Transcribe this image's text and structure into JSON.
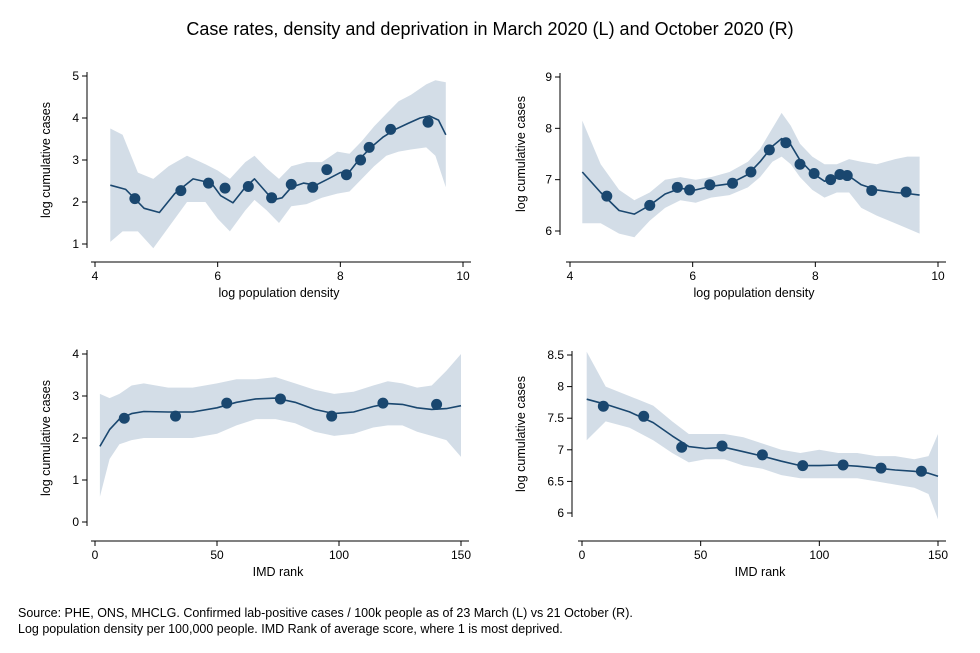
{
  "title": "Case rates, density and deprivation in March 2020 (L) and October 2020 (R)",
  "notes": [
    "Source: PHE, ONS, MHCLG. Confirmed lab-positive cases / 100k people as of 23 March (L) vs 21 October (R).",
    "Log population density per 100,000 people. IMD Rank of average score, where 1 is most deprived."
  ],
  "colors": {
    "marker": "#1a476f",
    "line": "#1a476f",
    "band": "#d3dde7",
    "axis": "#000000"
  },
  "chart_data": [
    {
      "type": "scatter",
      "xlabel": "log population density",
      "ylabel": "log cumulative cases",
      "xlim": [
        4,
        10
      ],
      "ylim": [
        1,
        5
      ],
      "xticks": [
        4,
        6,
        8,
        10
      ],
      "yticks": [
        1,
        2,
        3,
        4,
        5
      ],
      "points": [
        [
          4.65,
          2.08
        ],
        [
          5.4,
          2.27
        ],
        [
          5.85,
          2.45
        ],
        [
          6.12,
          2.33
        ],
        [
          6.5,
          2.37
        ],
        [
          6.88,
          2.1
        ],
        [
          7.2,
          2.42
        ],
        [
          7.55,
          2.35
        ],
        [
          7.78,
          2.77
        ],
        [
          8.1,
          2.65
        ],
        [
          8.33,
          3.0
        ],
        [
          8.47,
          3.3
        ],
        [
          8.82,
          3.73
        ],
        [
          9.43,
          3.9
        ]
      ],
      "fit": [
        [
          4.25,
          2.4
        ],
        [
          4.5,
          2.3
        ],
        [
          4.8,
          1.85
        ],
        [
          5.05,
          1.75
        ],
        [
          5.3,
          2.2
        ],
        [
          5.6,
          2.55
        ],
        [
          5.9,
          2.45
        ],
        [
          6.05,
          2.15
        ],
        [
          6.25,
          1.98
        ],
        [
          6.45,
          2.35
        ],
        [
          6.6,
          2.55
        ],
        [
          6.75,
          2.3
        ],
        [
          6.9,
          2.05
        ],
        [
          7.05,
          2.1
        ],
        [
          7.2,
          2.35
        ],
        [
          7.4,
          2.45
        ],
        [
          7.6,
          2.4
        ],
        [
          7.8,
          2.55
        ],
        [
          8.0,
          2.7
        ],
        [
          8.15,
          2.72
        ],
        [
          8.3,
          3.0
        ],
        [
          8.5,
          3.3
        ],
        [
          8.7,
          3.55
        ],
        [
          8.9,
          3.73
        ],
        [
          9.1,
          3.87
        ],
        [
          9.3,
          4.0
        ],
        [
          9.45,
          4.05
        ],
        [
          9.6,
          3.95
        ],
        [
          9.72,
          3.6
        ]
      ],
      "band_upper": [
        [
          4.25,
          3.75
        ],
        [
          4.45,
          3.6
        ],
        [
          4.7,
          2.7
        ],
        [
          4.95,
          2.55
        ],
        [
          5.2,
          2.85
        ],
        [
          5.5,
          3.1
        ],
        [
          5.8,
          2.9
        ],
        [
          6.0,
          2.75
        ],
        [
          6.2,
          2.55
        ],
        [
          6.45,
          2.95
        ],
        [
          6.6,
          3.1
        ],
        [
          6.8,
          2.8
        ],
        [
          7.0,
          2.55
        ],
        [
          7.2,
          2.85
        ],
        [
          7.45,
          2.95
        ],
        [
          7.7,
          2.95
        ],
        [
          7.95,
          3.2
        ],
        [
          8.15,
          3.15
        ],
        [
          8.35,
          3.45
        ],
        [
          8.55,
          3.8
        ],
        [
          8.75,
          4.1
        ],
        [
          8.95,
          4.4
        ],
        [
          9.15,
          4.55
        ],
        [
          9.4,
          4.8
        ],
        [
          9.55,
          4.9
        ],
        [
          9.72,
          4.85
        ]
      ],
      "band_lower": [
        [
          4.25,
          1.05
        ],
        [
          4.45,
          1.3
        ],
        [
          4.7,
          1.3
        ],
        [
          4.95,
          0.9
        ],
        [
          5.2,
          1.4
        ],
        [
          5.5,
          2.0
        ],
        [
          5.8,
          2.0
        ],
        [
          6.0,
          1.6
        ],
        [
          6.2,
          1.3
        ],
        [
          6.45,
          1.8
        ],
        [
          6.6,
          2.05
        ],
        [
          6.8,
          1.8
        ],
        [
          7.0,
          1.5
        ],
        [
          7.2,
          1.9
        ],
        [
          7.45,
          1.95
        ],
        [
          7.7,
          2.1
        ],
        [
          7.95,
          2.2
        ],
        [
          8.15,
          2.25
        ],
        [
          8.35,
          2.55
        ],
        [
          8.55,
          2.85
        ],
        [
          8.75,
          3.1
        ],
        [
          8.95,
          3.2
        ],
        [
          9.15,
          3.25
        ],
        [
          9.4,
          3.3
        ],
        [
          9.55,
          3.1
        ],
        [
          9.72,
          2.35
        ]
      ]
    },
    {
      "type": "scatter",
      "xlabel": "log population density",
      "ylabel": "log cumulative cases",
      "xlim": [
        4,
        10
      ],
      "ylim": [
        6,
        9
      ],
      "xticks": [
        4,
        6,
        8,
        10
      ],
      "yticks": [
        6,
        7,
        8,
        9
      ],
      "points": [
        [
          4.6,
          6.68
        ],
        [
          5.3,
          6.5
        ],
        [
          5.75,
          6.85
        ],
        [
          5.95,
          6.8
        ],
        [
          6.28,
          6.9
        ],
        [
          6.65,
          6.93
        ],
        [
          6.95,
          7.15
        ],
        [
          7.25,
          7.58
        ],
        [
          7.52,
          7.72
        ],
        [
          7.75,
          7.3
        ],
        [
          7.98,
          7.12
        ],
        [
          8.25,
          7.0
        ],
        [
          8.4,
          7.1
        ],
        [
          8.52,
          7.08
        ],
        [
          8.92,
          6.79
        ],
        [
          9.48,
          6.76
        ]
      ],
      "fit": [
        [
          4.2,
          7.15
        ],
        [
          4.5,
          6.75
        ],
        [
          4.8,
          6.4
        ],
        [
          5.05,
          6.33
        ],
        [
          5.3,
          6.5
        ],
        [
          5.55,
          6.72
        ],
        [
          5.8,
          6.83
        ],
        [
          6.05,
          6.8
        ],
        [
          6.3,
          6.87
        ],
        [
          6.6,
          6.92
        ],
        [
          6.9,
          7.1
        ],
        [
          7.1,
          7.35
        ],
        [
          7.3,
          7.65
        ],
        [
          7.45,
          7.8
        ],
        [
          7.6,
          7.68
        ],
        [
          7.75,
          7.38
        ],
        [
          7.95,
          7.13
        ],
        [
          8.15,
          6.97
        ],
        [
          8.35,
          7.03
        ],
        [
          8.55,
          7.07
        ],
        [
          8.75,
          6.9
        ],
        [
          9.0,
          6.8
        ],
        [
          9.3,
          6.75
        ],
        [
          9.5,
          6.73
        ],
        [
          9.7,
          6.7
        ]
      ],
      "band_upper": [
        [
          4.2,
          8.15
        ],
        [
          4.5,
          7.3
        ],
        [
          4.8,
          6.8
        ],
        [
          5.05,
          6.6
        ],
        [
          5.3,
          6.75
        ],
        [
          5.55,
          7.0
        ],
        [
          5.8,
          7.05
        ],
        [
          6.05,
          7.0
        ],
        [
          6.3,
          7.05
        ],
        [
          6.6,
          7.15
        ],
        [
          6.9,
          7.35
        ],
        [
          7.1,
          7.6
        ],
        [
          7.3,
          8.0
        ],
        [
          7.45,
          8.3
        ],
        [
          7.6,
          8.05
        ],
        [
          7.75,
          7.7
        ],
        [
          7.95,
          7.45
        ],
        [
          8.15,
          7.3
        ],
        [
          8.35,
          7.3
        ],
        [
          8.55,
          7.4
        ],
        [
          8.75,
          7.35
        ],
        [
          9.0,
          7.3
        ],
        [
          9.3,
          7.4
        ],
        [
          9.5,
          7.45
        ],
        [
          9.7,
          7.45
        ]
      ],
      "band_lower": [
        [
          4.2,
          6.15
        ],
        [
          4.5,
          6.15
        ],
        [
          4.8,
          5.95
        ],
        [
          5.05,
          5.88
        ],
        [
          5.3,
          6.2
        ],
        [
          5.55,
          6.45
        ],
        [
          5.8,
          6.6
        ],
        [
          6.05,
          6.55
        ],
        [
          6.3,
          6.65
        ],
        [
          6.6,
          6.7
        ],
        [
          6.9,
          6.85
        ],
        [
          7.1,
          7.05
        ],
        [
          7.3,
          7.35
        ],
        [
          7.45,
          7.45
        ],
        [
          7.6,
          7.3
        ],
        [
          7.75,
          7.05
        ],
        [
          7.95,
          6.8
        ],
        [
          8.15,
          6.65
        ],
        [
          8.35,
          6.75
        ],
        [
          8.55,
          6.75
        ],
        [
          8.75,
          6.45
        ],
        [
          9.0,
          6.3
        ],
        [
          9.3,
          6.15
        ],
        [
          9.5,
          6.05
        ],
        [
          9.7,
          5.95
        ]
      ]
    },
    {
      "type": "scatter",
      "xlabel": "IMD rank",
      "ylabel": "log cumulative cases",
      "xlim": [
        0,
        150
      ],
      "ylim": [
        0,
        4
      ],
      "xticks": [
        0,
        50,
        100,
        150
      ],
      "yticks": [
        0,
        1,
        2,
        3,
        4
      ],
      "points": [
        [
          12,
          2.47
        ],
        [
          33,
          2.52
        ],
        [
          54,
          2.83
        ],
        [
          76,
          2.93
        ],
        [
          97,
          2.52
        ],
        [
          118,
          2.83
        ],
        [
          140,
          2.8
        ]
      ],
      "fit": [
        [
          2,
          1.8
        ],
        [
          6,
          2.2
        ],
        [
          10,
          2.45
        ],
        [
          15,
          2.58
        ],
        [
          20,
          2.63
        ],
        [
          30,
          2.62
        ],
        [
          40,
          2.62
        ],
        [
          50,
          2.72
        ],
        [
          58,
          2.85
        ],
        [
          66,
          2.93
        ],
        [
          74,
          2.95
        ],
        [
          82,
          2.85
        ],
        [
          90,
          2.68
        ],
        [
          98,
          2.58
        ],
        [
          106,
          2.62
        ],
        [
          114,
          2.75
        ],
        [
          120,
          2.82
        ],
        [
          126,
          2.8
        ],
        [
          132,
          2.72
        ],
        [
          138,
          2.68
        ],
        [
          144,
          2.7
        ],
        [
          150,
          2.77
        ]
      ],
      "band_upper": [
        [
          2,
          3.05
        ],
        [
          6,
          2.95
        ],
        [
          10,
          3.05
        ],
        [
          15,
          3.25
        ],
        [
          20,
          3.3
        ],
        [
          30,
          3.2
        ],
        [
          40,
          3.2
        ],
        [
          50,
          3.3
        ],
        [
          58,
          3.4
        ],
        [
          66,
          3.4
        ],
        [
          74,
          3.45
        ],
        [
          82,
          3.3
        ],
        [
          90,
          3.15
        ],
        [
          98,
          3.05
        ],
        [
          106,
          3.1
        ],
        [
          114,
          3.25
        ],
        [
          120,
          3.35
        ],
        [
          126,
          3.3
        ],
        [
          132,
          3.2
        ],
        [
          138,
          3.25
        ],
        [
          144,
          3.6
        ],
        [
          150,
          4.0
        ]
      ],
      "band_lower": [
        [
          2,
          0.6
        ],
        [
          6,
          1.5
        ],
        [
          10,
          1.85
        ],
        [
          15,
          1.95
        ],
        [
          20,
          2.0
        ],
        [
          30,
          2.0
        ],
        [
          40,
          2.0
        ],
        [
          50,
          2.1
        ],
        [
          58,
          2.3
        ],
        [
          66,
          2.45
        ],
        [
          74,
          2.45
        ],
        [
          82,
          2.35
        ],
        [
          90,
          2.15
        ],
        [
          98,
          2.05
        ],
        [
          106,
          2.1
        ],
        [
          114,
          2.25
        ],
        [
          120,
          2.3
        ],
        [
          126,
          2.3
        ],
        [
          132,
          2.15
        ],
        [
          138,
          2.05
        ],
        [
          144,
          1.95
        ],
        [
          150,
          1.55
        ]
      ]
    },
    {
      "type": "scatter",
      "xlabel": "IMD rank",
      "ylabel": "log cumulative cases",
      "xlim": [
        0,
        150
      ],
      "ylim": [
        6,
        8.5
      ],
      "xticks": [
        0,
        50,
        100,
        150
      ],
      "yticks": [
        6,
        6.5,
        7,
        7.5,
        8,
        8.5
      ],
      "points": [
        [
          9,
          7.69
        ],
        [
          26,
          7.53
        ],
        [
          42,
          7.04
        ],
        [
          59,
          7.06
        ],
        [
          76,
          6.92
        ],
        [
          93,
          6.75
        ],
        [
          110,
          6.76
        ],
        [
          126,
          6.71
        ],
        [
          143,
          6.66
        ]
      ],
      "fit": [
        [
          2,
          7.8
        ],
        [
          10,
          7.72
        ],
        [
          20,
          7.6
        ],
        [
          30,
          7.43
        ],
        [
          38,
          7.22
        ],
        [
          45,
          7.05
        ],
        [
          52,
          7.02
        ],
        [
          60,
          7.04
        ],
        [
          68,
          6.97
        ],
        [
          76,
          6.9
        ],
        [
          84,
          6.82
        ],
        [
          92,
          6.75
        ],
        [
          100,
          6.75
        ],
        [
          108,
          6.76
        ],
        [
          116,
          6.74
        ],
        [
          124,
          6.71
        ],
        [
          132,
          6.68
        ],
        [
          140,
          6.66
        ],
        [
          146,
          6.63
        ],
        [
          150,
          6.58
        ]
      ],
      "band_upper": [
        [
          2,
          8.55
        ],
        [
          10,
          8.0
        ],
        [
          20,
          7.85
        ],
        [
          30,
          7.7
        ],
        [
          38,
          7.45
        ],
        [
          45,
          7.25
        ],
        [
          52,
          7.25
        ],
        [
          60,
          7.25
        ],
        [
          68,
          7.2
        ],
        [
          76,
          7.1
        ],
        [
          84,
          7.0
        ],
        [
          92,
          6.95
        ],
        [
          100,
          7.0
        ],
        [
          108,
          6.95
        ],
        [
          116,
          6.95
        ],
        [
          124,
          6.9
        ],
        [
          132,
          6.9
        ],
        [
          140,
          6.85
        ],
        [
          146,
          6.9
        ],
        [
          150,
          7.25
        ]
      ],
      "band_lower": [
        [
          2,
          7.15
        ],
        [
          10,
          7.45
        ],
        [
          20,
          7.35
        ],
        [
          30,
          7.15
        ],
        [
          38,
          6.95
        ],
        [
          45,
          6.8
        ],
        [
          52,
          6.85
        ],
        [
          60,
          6.85
        ],
        [
          68,
          6.75
        ],
        [
          76,
          6.7
        ],
        [
          84,
          6.6
        ],
        [
          92,
          6.55
        ],
        [
          100,
          6.55
        ],
        [
          108,
          6.55
        ],
        [
          116,
          6.55
        ],
        [
          124,
          6.5
        ],
        [
          132,
          6.45
        ],
        [
          140,
          6.4
        ],
        [
          146,
          6.3
        ],
        [
          150,
          5.9
        ]
      ]
    }
  ]
}
